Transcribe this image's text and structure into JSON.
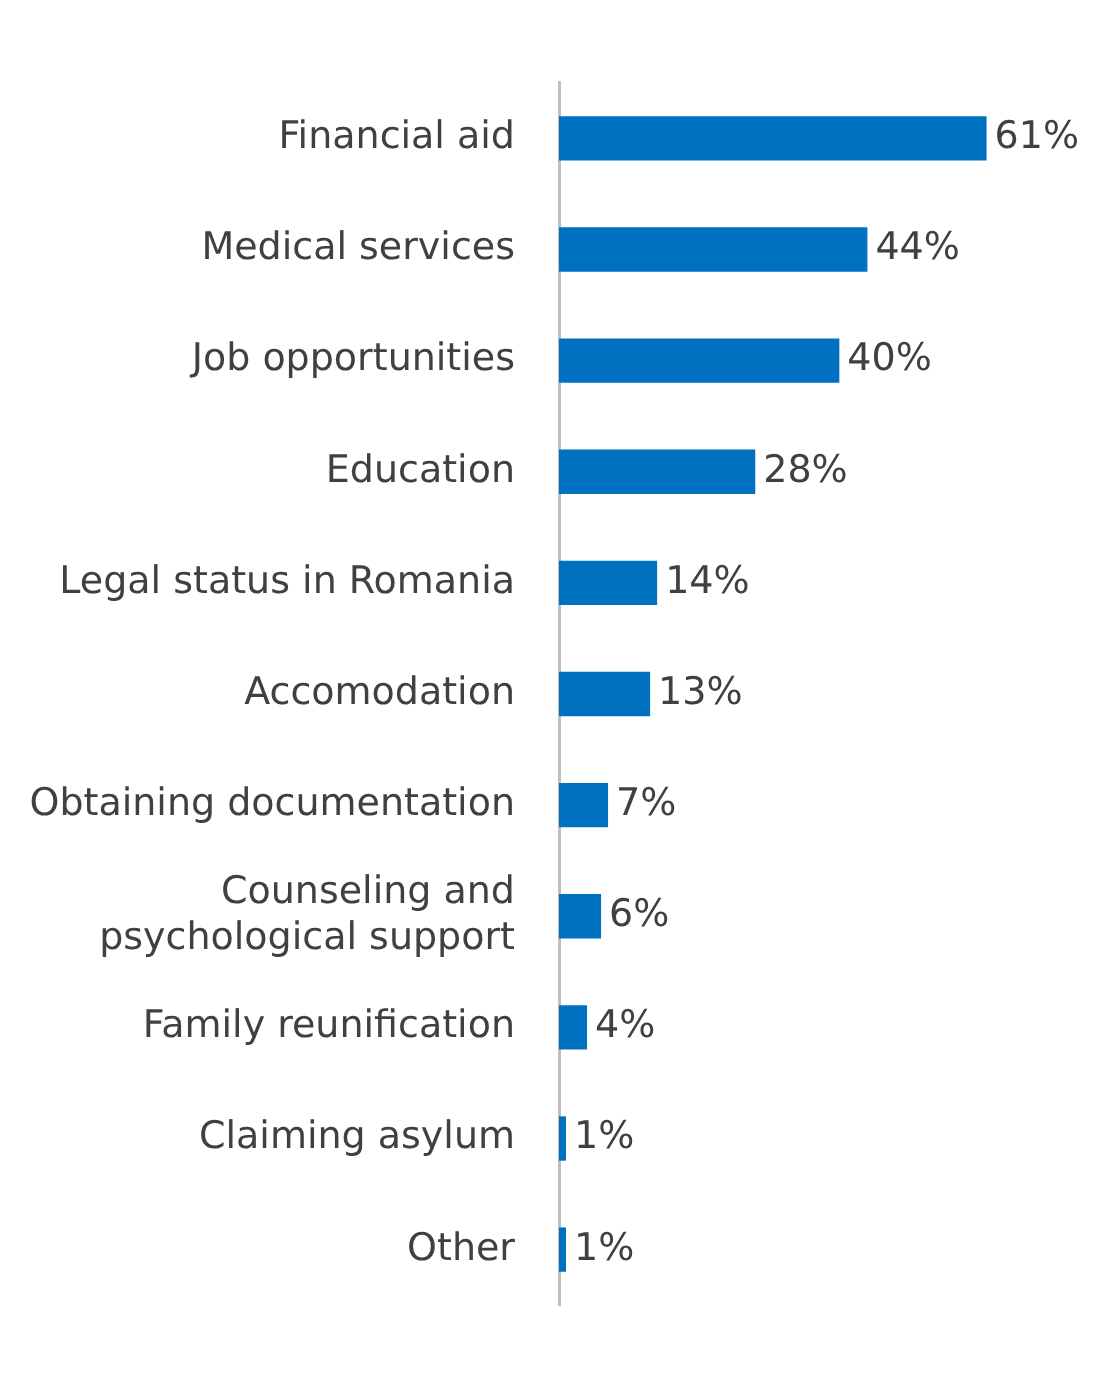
{
  "chart_data": {
    "type": "bar",
    "orientation": "horizontal",
    "categories": [
      "Financial aid",
      "Medical services",
      "Job opportunities",
      "Education",
      "Legal status in Romania",
      "Accomodation",
      "Obtaining documentation",
      "Counseling and psychological support",
      "Family reunification",
      "Claiming asylum",
      "Other"
    ],
    "values": [
      61,
      44,
      40,
      28,
      14,
      13,
      7,
      6,
      4,
      1,
      1
    ],
    "value_labels": [
      "61%",
      "44%",
      "40%",
      "28%",
      "14%",
      "13%",
      "7%",
      "6%",
      "4%",
      "1%",
      "1%"
    ],
    "color": "#0070c0",
    "grid": false,
    "legend": false
  }
}
